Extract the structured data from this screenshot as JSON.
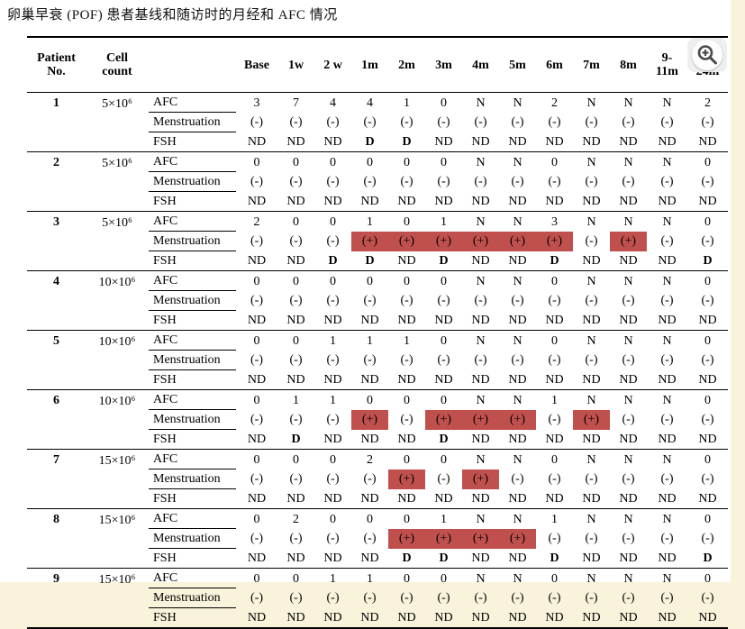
{
  "page": {
    "title": "卵巢早衰 (POF) 患者基线和随访时的月经和 AFC 情况"
  },
  "colors": {
    "highlight_red": "#c0504d",
    "page_background": "#f8f3da",
    "panel_background": "#ffffff"
  },
  "icons": {
    "zoom_in_icon": "magnifier-plus"
  },
  "table": {
    "header": {
      "patient_no": "Patient\nNo.",
      "cell_count": "Cell\ncount",
      "row_label": "",
      "timepoints": [
        "Base",
        "1w",
        "2 w",
        "1m",
        "2m",
        "3m",
        "4m",
        "5m",
        "6m",
        "7m",
        "8m",
        "9-\n11m",
        "12-\n24m"
      ]
    },
    "row_labels": {
      "afc": "AFC",
      "mens": "Menstruation",
      "fsh": "FSH"
    },
    "patients": [
      {
        "no": "1",
        "cell_count": "5×10⁶",
        "afc": [
          "3",
          "7",
          "4",
          "4",
          "1",
          "0",
          "N",
          "N",
          "2",
          "N",
          "N",
          "N",
          "2"
        ],
        "mens": [
          "(-)",
          "(-)",
          "(-)",
          "(-)",
          "(-)",
          "(-)",
          "(-)",
          "(-)",
          "(-)",
          "(-)",
          "(-)",
          "(-)",
          "(-)"
        ],
        "hl": [
          0,
          0,
          0,
          0,
          0,
          0,
          0,
          0,
          0,
          0,
          0,
          0,
          0
        ],
        "fsh": [
          "ND",
          "ND",
          "ND",
          "D",
          "D",
          "ND",
          "ND",
          "ND",
          "ND",
          "ND",
          "ND",
          "ND",
          "ND"
        ]
      },
      {
        "no": "2",
        "cell_count": "5×10⁶",
        "afc": [
          "0",
          "0",
          "0",
          "0",
          "0",
          "0",
          "N",
          "N",
          "0",
          "N",
          "N",
          "N",
          "0"
        ],
        "mens": [
          "(-)",
          "(-)",
          "(-)",
          "(-)",
          "(-)",
          "(-)",
          "(-)",
          "(-)",
          "(-)",
          "(-)",
          "(-)",
          "(-)",
          "(-)"
        ],
        "hl": [
          0,
          0,
          0,
          0,
          0,
          0,
          0,
          0,
          0,
          0,
          0,
          0,
          0
        ],
        "fsh": [
          "ND",
          "ND",
          "ND",
          "ND",
          "ND",
          "ND",
          "ND",
          "ND",
          "ND",
          "ND",
          "ND",
          "ND",
          "ND"
        ]
      },
      {
        "no": "3",
        "cell_count": "5×10⁶",
        "afc": [
          "2",
          "0",
          "0",
          "1",
          "0",
          "1",
          "N",
          "N",
          "3",
          "N",
          "N",
          "N",
          "0"
        ],
        "mens": [
          "(-)",
          "(-)",
          "(-)",
          "(+)",
          "(+)",
          "(+)",
          "(+)",
          "(+)",
          "(+)",
          "(-)",
          "(+)",
          "(-)",
          "(-)"
        ],
        "hl": [
          0,
          0,
          0,
          1,
          1,
          1,
          1,
          1,
          1,
          0,
          1,
          0,
          0
        ],
        "fsh": [
          "ND",
          "ND",
          "D",
          "D",
          "ND",
          "D",
          "ND",
          "ND",
          "D",
          "ND",
          "ND",
          "ND",
          "D"
        ]
      },
      {
        "no": "4",
        "cell_count": "10×10⁶",
        "afc": [
          "0",
          "0",
          "0",
          "0",
          "0",
          "0",
          "N",
          "N",
          "0",
          "N",
          "N",
          "N",
          "0"
        ],
        "mens": [
          "(-)",
          "(-)",
          "(-)",
          "(-)",
          "(-)",
          "(-)",
          "(-)",
          "(-)",
          "(-)",
          "(-)",
          "(-)",
          "(-)",
          "(-)"
        ],
        "hl": [
          0,
          0,
          0,
          0,
          0,
          0,
          0,
          0,
          0,
          0,
          0,
          0,
          0
        ],
        "fsh": [
          "ND",
          "ND",
          "ND",
          "ND",
          "ND",
          "ND",
          "ND",
          "ND",
          "ND",
          "ND",
          "ND",
          "ND",
          "ND"
        ]
      },
      {
        "no": "5",
        "cell_count": "10×10⁶",
        "afc": [
          "0",
          "0",
          "1",
          "1",
          "1",
          "0",
          "N",
          "N",
          "0",
          "N",
          "N",
          "N",
          "0"
        ],
        "mens": [
          "(-)",
          "(-)",
          "(-)",
          "(-)",
          "(-)",
          "(-)",
          "(-)",
          "(-)",
          "(-)",
          "(-)",
          "(-)",
          "(-)",
          "(-)"
        ],
        "hl": [
          0,
          0,
          0,
          0,
          0,
          0,
          0,
          0,
          0,
          0,
          0,
          0,
          0
        ],
        "fsh": [
          "ND",
          "ND",
          "ND",
          "ND",
          "ND",
          "ND",
          "ND",
          "ND",
          "ND",
          "ND",
          "ND",
          "ND",
          "ND"
        ]
      },
      {
        "no": "6",
        "cell_count": "10×10⁶",
        "afc": [
          "0",
          "1",
          "1",
          "0",
          "0",
          "0",
          "N",
          "N",
          "1",
          "N",
          "N",
          "N",
          "0"
        ],
        "mens": [
          "(-)",
          "(-)",
          "(-)",
          "(+)",
          "(-)",
          "(+)",
          "(+)",
          "(+)",
          "(-)",
          "(+)",
          "(-)",
          "(-)",
          "(-)"
        ],
        "hl": [
          0,
          0,
          0,
          1,
          0,
          1,
          1,
          1,
          0,
          1,
          0,
          0,
          0
        ],
        "fsh": [
          "ND",
          "D",
          "ND",
          "ND",
          "ND",
          "D",
          "ND",
          "ND",
          "ND",
          "ND",
          "ND",
          "ND",
          "ND"
        ]
      },
      {
        "no": "7",
        "cell_count": "15×10⁶",
        "afc": [
          "0",
          "0",
          "0",
          "2",
          "0",
          "0",
          "N",
          "N",
          "0",
          "N",
          "N",
          "N",
          "0"
        ],
        "mens": [
          "(-)",
          "(-)",
          "(-)",
          "(-)",
          "(+)",
          "(-)",
          "(+)",
          "(-)",
          "(-)",
          "(-)",
          "(-)",
          "(-)",
          "(-)"
        ],
        "hl": [
          0,
          0,
          0,
          0,
          1,
          0,
          1,
          0,
          0,
          0,
          0,
          0,
          0
        ],
        "fsh": [
          "ND",
          "ND",
          "ND",
          "ND",
          "ND",
          "ND",
          "ND",
          "ND",
          "ND",
          "ND",
          "ND",
          "ND",
          "ND"
        ]
      },
      {
        "no": "8",
        "cell_count": "15×10⁶",
        "afc": [
          "0",
          "2",
          "0",
          "0",
          "0",
          "1",
          "N",
          "N",
          "1",
          "N",
          "N",
          "N",
          "0"
        ],
        "mens": [
          "(-)",
          "(-)",
          "(-)",
          "(-)",
          "(+)",
          "(+)",
          "(+)",
          "(+)",
          "(-)",
          "(-)",
          "(-)",
          "(-)",
          "(-)"
        ],
        "hl": [
          0,
          0,
          0,
          0,
          1,
          1,
          1,
          1,
          0,
          0,
          0,
          0,
          0
        ],
        "fsh": [
          "ND",
          "ND",
          "ND",
          "ND",
          "D",
          "D",
          "ND",
          "ND",
          "D",
          "ND",
          "ND",
          "ND",
          "D"
        ]
      },
      {
        "no": "9",
        "cell_count": "15×10⁶",
        "afc": [
          "0",
          "0",
          "1",
          "1",
          "0",
          "0",
          "N",
          "N",
          "0",
          "N",
          "N",
          "N",
          "0"
        ],
        "mens": [
          "(-)",
          "(-)",
          "(-)",
          "(-)",
          "(-)",
          "(-)",
          "(-)",
          "(-)",
          "(-)",
          "(-)",
          "(-)",
          "(-)",
          "(-)"
        ],
        "hl": [
          0,
          0,
          0,
          0,
          0,
          0,
          0,
          0,
          0,
          0,
          0,
          0,
          0
        ],
        "fsh": [
          "ND",
          "ND",
          "ND",
          "ND",
          "ND",
          "ND",
          "ND",
          "ND",
          "ND",
          "ND",
          "ND",
          "ND",
          "ND"
        ]
      }
    ]
  }
}
